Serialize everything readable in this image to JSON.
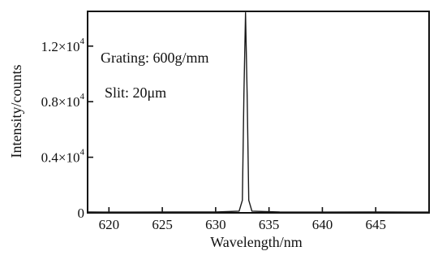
{
  "chart_data": {
    "type": "line",
    "title": "",
    "xlabel": "Wavelength/nm",
    "ylabel": "Intensity/counts",
    "xlim": [
      618,
      650
    ],
    "ylim": [
      0,
      14500
    ],
    "x_ticks": [
      620,
      625,
      630,
      635,
      640,
      645
    ],
    "x_tick_labels": [
      "620",
      "625",
      "630",
      "635",
      "640",
      "645"
    ],
    "y_ticks": [
      {
        "value": 0,
        "mantissa": "0",
        "has_exponent": false
      },
      {
        "value": 4000,
        "mantissa": "0.4×10",
        "has_exponent": true
      },
      {
        "value": 8000,
        "mantissa": "0.8×10",
        "has_exponent": true
      },
      {
        "value": 12000,
        "mantissa": "1.2×10",
        "has_exponent": true
      }
    ],
    "y_tick_exponent": "4",
    "annotations": [
      "Grating: 600g/mm",
      "Slit: 20μm"
    ],
    "grid": false,
    "legend": "none",
    "line_color": "#1a1a1a",
    "series": [
      {
        "x": [
          618,
          622,
          626,
          630,
          632.2,
          632.5,
          632.65,
          632.8,
          632.95,
          633.1,
          633.4,
          636,
          640,
          645,
          650
        ],
        "y": [
          60,
          50,
          60,
          60,
          120,
          900,
          8500,
          14400,
          8500,
          900,
          120,
          60,
          50,
          60,
          50
        ]
      }
    ]
  }
}
